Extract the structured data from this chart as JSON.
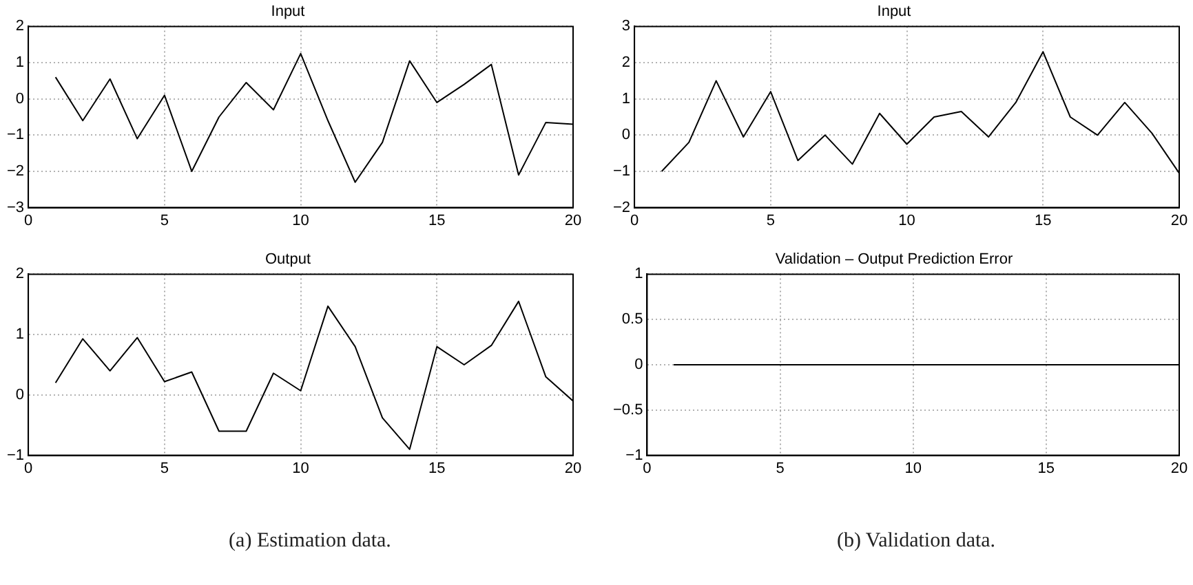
{
  "chart_data": [
    {
      "type": "line",
      "title": "Input",
      "x": [
        1,
        2,
        3,
        4,
        5,
        6,
        7,
        8,
        9,
        10,
        11,
        12,
        13,
        14,
        15,
        16,
        17,
        18,
        19,
        20
      ],
      "series": [
        {
          "color": "#000000",
          "values": [
            0.6,
            -0.6,
            0.55,
            -1.1,
            0.1,
            -2.0,
            -0.5,
            0.45,
            -0.3,
            1.25,
            -0.6,
            -2.3,
            -1.2,
            1.05,
            -0.1,
            0.4,
            0.95,
            -2.1,
            -0.65,
            -0.7
          ]
        }
      ],
      "xlim": [
        0,
        20
      ],
      "xticks": [
        0,
        5,
        10,
        15,
        20
      ],
      "ylim": [
        -3,
        2
      ],
      "yticks": [
        -3,
        -2,
        -1,
        0,
        1,
        2
      ],
      "grid": true,
      "legend": false,
      "marker": "none",
      "line_style": "solid"
    },
    {
      "type": "line",
      "title": "Output",
      "x": [
        1,
        2,
        3,
        4,
        5,
        6,
        7,
        8,
        9,
        10,
        11,
        12,
        13,
        14,
        15,
        16,
        17,
        18,
        19,
        20
      ],
      "series": [
        {
          "color": "#000000",
          "values": [
            0.2,
            0.93,
            0.4,
            0.95,
            0.22,
            0.38,
            -0.6,
            -0.6,
            0.36,
            0.07,
            1.47,
            0.8,
            -0.38,
            -0.9,
            0.8,
            0.5,
            0.82,
            1.55,
            0.3,
            -0.1
          ]
        }
      ],
      "xlim": [
        0,
        20
      ],
      "xticks": [
        0,
        5,
        10,
        15,
        20
      ],
      "ylim": [
        -1,
        2
      ],
      "yticks": [
        -1,
        0,
        1,
        2
      ],
      "grid": true,
      "legend": false,
      "marker": "none",
      "line_style": "solid",
      "annotations": [
        "(a) Estimation data."
      ]
    },
    {
      "type": "line",
      "title": "Input",
      "x": [
        1,
        2,
        3,
        4,
        5,
        6,
        7,
        8,
        9,
        10,
        11,
        12,
        13,
        14,
        15,
        16,
        17,
        18,
        19,
        20
      ],
      "series": [
        {
          "color": "#000000",
          "values": [
            -1.0,
            -0.2,
            1.5,
            -0.05,
            1.2,
            -0.7,
            0,
            -0.8,
            0.6,
            -0.25,
            0.5,
            0.65,
            -0.05,
            0.9,
            2.3,
            0.5,
            0,
            0.9,
            0.05,
            -1.05
          ]
        }
      ],
      "xlim": [
        0,
        20
      ],
      "xticks": [
        0,
        5,
        10,
        15,
        20
      ],
      "ylim": [
        -2,
        3
      ],
      "yticks": [
        -2,
        -1,
        0,
        1,
        2,
        3
      ],
      "grid": true,
      "legend": false,
      "marker": "none",
      "line_style": "solid"
    },
    {
      "type": "line",
      "title": "Validation – Output Prediction Error",
      "x": [
        1,
        2,
        3,
        4,
        5,
        6,
        7,
        8,
        9,
        10,
        11,
        12,
        13,
        14,
        15,
        16,
        17,
        18,
        19,
        20
      ],
      "series": [
        {
          "color": "#000000",
          "values": [
            0,
            0,
            0,
            0,
            0,
            0,
            0,
            0,
            0,
            0,
            0,
            0,
            0,
            0,
            0,
            0,
            0,
            0,
            0,
            0
          ]
        }
      ],
      "xlim": [
        0,
        20
      ],
      "xticks": [
        0,
        5,
        10,
        15,
        20
      ],
      "ylim": [
        -1,
        1
      ],
      "yticks": [
        -1,
        -0.5,
        0,
        0.5,
        1
      ],
      "grid": true,
      "legend": false,
      "marker": "none",
      "line_style": "solid",
      "annotations": [
        "(b) Validation data."
      ]
    }
  ]
}
